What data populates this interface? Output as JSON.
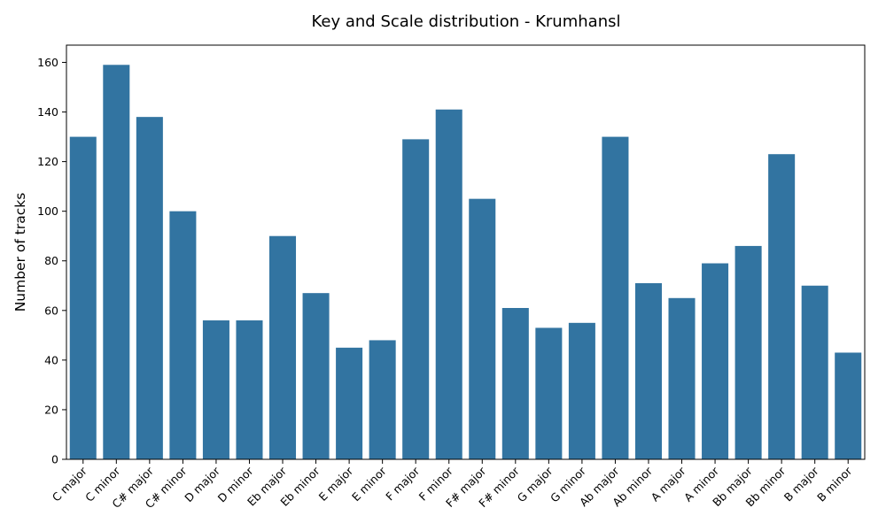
{
  "chart_data": {
    "type": "bar",
    "title": "Key and Scale distribution - Krumhansl",
    "xlabel": "",
    "ylabel": "Number of tracks",
    "categories": [
      "C major",
      "C minor",
      "C# major",
      "C# minor",
      "D major",
      "D minor",
      "Eb major",
      "Eb minor",
      "E major",
      "E minor",
      "F major",
      "F minor",
      "F# major",
      "F# minor",
      "G major",
      "G minor",
      "Ab major",
      "Ab minor",
      "A major",
      "A minor",
      "Bb major",
      "Bb minor",
      "B major",
      "B minor"
    ],
    "values": [
      130,
      159,
      138,
      100,
      56,
      56,
      90,
      67,
      45,
      48,
      129,
      141,
      105,
      61,
      53,
      55,
      130,
      71,
      65,
      79,
      86,
      123,
      70,
      43
    ],
    "ylim": [
      0,
      166.95
    ],
    "yticks": [
      0,
      20,
      40,
      60,
      80,
      100,
      120,
      140,
      160
    ],
    "bar_color": "#3274a1",
    "grid": false,
    "legend": "none"
  }
}
